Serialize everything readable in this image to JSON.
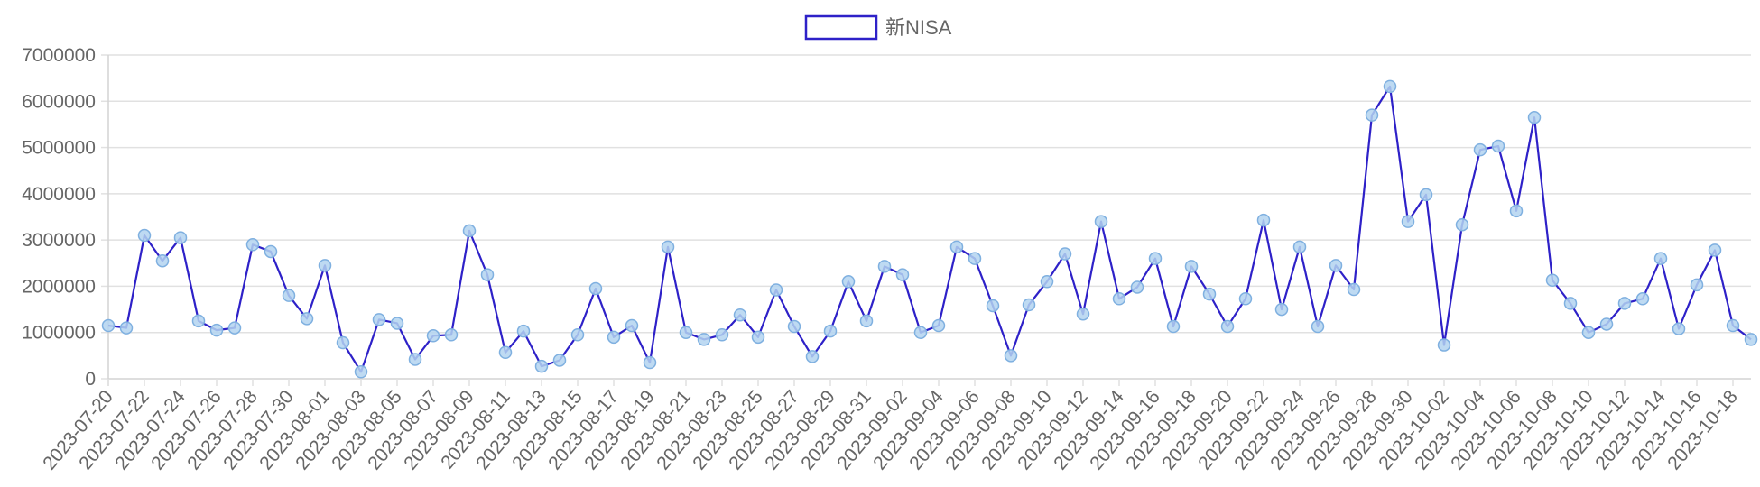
{
  "colors": {
    "line": "#2e21c8",
    "point_fill": "#b3d4f0",
    "point_stroke": "#7fb0e0",
    "grid": "#e1e1e1",
    "text": "#666666"
  },
  "legend": {
    "label": "新NISA"
  },
  "chart_data": {
    "type": "line",
    "title": "",
    "xlabel": "",
    "ylabel": "",
    "ylim": [
      0,
      7000000
    ],
    "yticks": [
      0,
      1000000,
      2000000,
      3000000,
      4000000,
      5000000,
      6000000,
      7000000
    ],
    "grid": true,
    "legend_position": "top-center",
    "x": [
      "2023-07-20",
      "2023-07-21",
      "2023-07-22",
      "2023-07-23",
      "2023-07-24",
      "2023-07-25",
      "2023-07-26",
      "2023-07-27",
      "2023-07-28",
      "2023-07-29",
      "2023-07-30",
      "2023-07-31",
      "2023-08-01",
      "2023-08-02",
      "2023-08-03",
      "2023-08-04",
      "2023-08-05",
      "2023-08-06",
      "2023-08-07",
      "2023-08-08",
      "2023-08-09",
      "2023-08-10",
      "2023-08-11",
      "2023-08-12",
      "2023-08-13",
      "2023-08-14",
      "2023-08-15",
      "2023-08-16",
      "2023-08-17",
      "2023-08-18",
      "2023-08-19",
      "2023-08-20",
      "2023-08-21",
      "2023-08-22",
      "2023-08-23",
      "2023-08-24",
      "2023-08-25",
      "2023-08-26",
      "2023-08-27",
      "2023-08-28",
      "2023-08-29",
      "2023-08-30",
      "2023-08-31",
      "2023-09-01",
      "2023-09-02",
      "2023-09-03",
      "2023-09-04",
      "2023-09-05",
      "2023-09-06",
      "2023-09-07",
      "2023-09-08",
      "2023-09-09",
      "2023-09-10",
      "2023-09-11",
      "2023-09-12",
      "2023-09-13",
      "2023-09-14",
      "2023-09-15",
      "2023-09-16",
      "2023-09-17",
      "2023-09-18",
      "2023-09-19",
      "2023-09-20",
      "2023-09-21",
      "2023-09-22",
      "2023-09-23",
      "2023-09-24",
      "2023-09-25",
      "2023-09-26",
      "2023-09-27",
      "2023-09-28",
      "2023-09-29",
      "2023-09-30",
      "2023-10-01",
      "2023-10-02",
      "2023-10-03",
      "2023-10-04",
      "2023-10-05",
      "2023-10-06",
      "2023-10-07",
      "2023-10-08",
      "2023-10-09",
      "2023-10-10",
      "2023-10-11",
      "2023-10-12",
      "2023-10-13",
      "2023-10-14",
      "2023-10-15",
      "2023-10-16",
      "2023-10-17",
      "2023-10-18",
      "2023-10-19"
    ],
    "x_tick_labels": [
      "2023-07-20",
      "2023-07-22",
      "2023-07-24",
      "2023-07-26",
      "2023-07-28",
      "2023-07-30",
      "2023-08-01",
      "2023-08-03",
      "2023-08-05",
      "2023-08-07",
      "2023-08-09",
      "2023-08-11",
      "2023-08-13",
      "2023-08-15",
      "2023-08-17",
      "2023-08-19",
      "2023-08-21",
      "2023-08-23",
      "2023-08-25",
      "2023-08-27",
      "2023-08-29",
      "2023-08-31",
      "2023-09-02",
      "2023-09-04",
      "2023-09-06",
      "2023-09-08",
      "2023-09-10",
      "2023-09-12",
      "2023-09-14",
      "2023-09-16",
      "2023-09-18",
      "2023-09-20",
      "2023-09-22",
      "2023-09-24",
      "2023-09-26",
      "2023-09-28",
      "2023-09-30",
      "2023-10-02",
      "2023-10-04",
      "2023-10-06",
      "2023-10-08",
      "2023-10-10",
      "2023-10-12",
      "2023-10-14",
      "2023-10-16",
      "2023-10-18"
    ],
    "series": [
      {
        "name": "新NISA",
        "values": [
          1150000,
          1100000,
          3100000,
          2550000,
          3050000,
          1250000,
          1050000,
          1100000,
          2900000,
          2750000,
          1800000,
          1300000,
          2450000,
          780000,
          150000,
          1280000,
          1200000,
          420000,
          930000,
          950000,
          3200000,
          2250000,
          570000,
          1030000,
          270000,
          400000,
          950000,
          1950000,
          900000,
          1150000,
          350000,
          2850000,
          1000000,
          850000,
          950000,
          1380000,
          900000,
          1920000,
          1130000,
          480000,
          1030000,
          2100000,
          1250000,
          2430000,
          2250000,
          1000000,
          1150000,
          2850000,
          2600000,
          1580000,
          500000,
          1600000,
          2100000,
          2700000,
          1400000,
          3400000,
          1730000,
          1980000,
          2600000,
          1130000,
          2430000,
          1830000,
          1130000,
          1730000,
          3430000,
          1500000,
          2850000,
          1130000,
          2450000,
          1930000,
          5700000,
          6320000,
          3400000,
          3980000,
          730000,
          3330000,
          4950000,
          5030000,
          3630000,
          5650000,
          2130000,
          1630000,
          1000000,
          1180000,
          1630000,
          1730000,
          2600000,
          1080000,
          2030000,
          2780000,
          1150000,
          850000
        ]
      }
    ]
  }
}
